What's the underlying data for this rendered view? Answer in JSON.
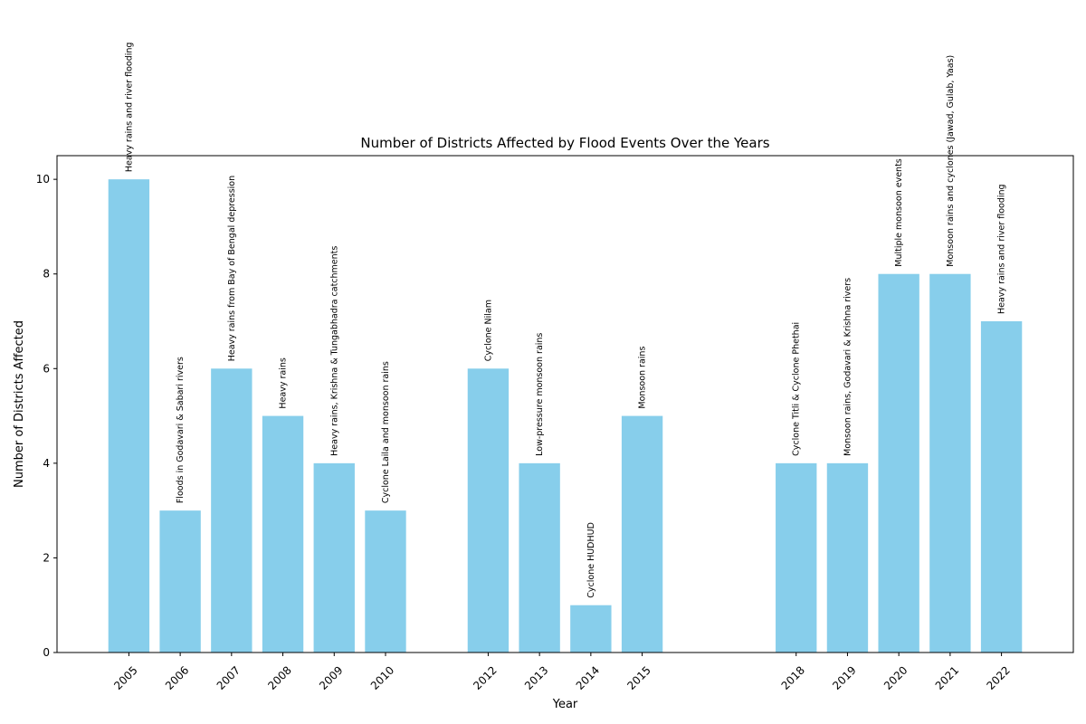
{
  "chart_data": {
    "type": "bar",
    "title": "Number of Districts Affected by Flood Events Over the Years",
    "xlabel": "Year",
    "ylabel": "Number of Districts Affected",
    "ylim": [
      0,
      10.5
    ],
    "xlim": [
      2003.6,
      2023.4
    ],
    "yticks": [
      0,
      2,
      4,
      6,
      8,
      10
    ],
    "bar_color": "#87ceeb",
    "grid": false,
    "x": [
      2005,
      2006,
      2007,
      2008,
      2009,
      2010,
      2012,
      2013,
      2014,
      2015,
      2018,
      2019,
      2020,
      2021,
      2022
    ],
    "tick_labels": [
      "2005",
      "2006",
      "2007",
      "2008",
      "2009",
      "2010",
      "2012",
      "2013",
      "2014",
      "2015",
      "2018",
      "2019",
      "2020",
      "2021",
      "2022"
    ],
    "values": [
      10,
      3,
      6,
      5,
      4,
      3,
      6,
      4,
      1,
      5,
      4,
      4,
      8,
      8,
      7
    ],
    "annotations": [
      "Heavy rains and river flooding",
      "Floods in Godavari & Sabari rivers",
      "Heavy rains from Bay of Bengal depression",
      "Heavy rains",
      "Heavy rains, Krishna & Tungabhadra catchments",
      "Cyclone Laila and monsoon rains",
      "Cyclone Nilam",
      "Low-pressure monsoon rains",
      "Cyclone HUDHUD",
      "Monsoon rains",
      "Cyclone Titli & Cyclone Phethai",
      "Monsoon rains, Godavari & Krishna rivers",
      "Multiple monsoon events",
      "Monsoon rains and cyclones (Jawad, Gulab, Yaas)",
      "Heavy rains and river flooding"
    ]
  }
}
